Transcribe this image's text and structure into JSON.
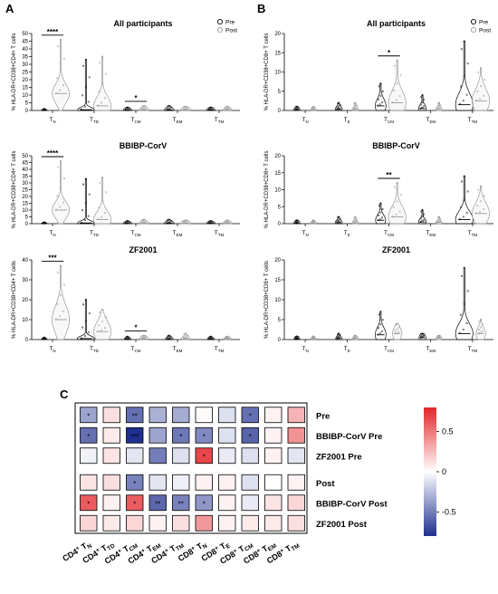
{
  "chart_data": [
    {
      "type": "violin",
      "panel": "A",
      "title": "All participants",
      "ylabel": "% HLA-DR+CD38+CD4+ T cells",
      "ylim": [
        0,
        50
      ],
      "yticks": [
        "0",
        "5",
        "10",
        "15",
        "20",
        "25",
        "30",
        "35",
        "40",
        "45",
        "50"
      ],
      "categories": [
        {
          "main": "T",
          "sub": "N"
        },
        {
          "main": "T",
          "sub": "TD"
        },
        {
          "main": "T",
          "sub": "CM"
        },
        {
          "main": "T",
          "sub": "EM"
        },
        {
          "main": "T",
          "sub": "TM"
        }
      ],
      "series": [
        {
          "name": "Pre",
          "max": [
            1,
            33,
            2,
            3,
            2
          ],
          "median": [
            0.2,
            0.5,
            0.2,
            0.3,
            0.3
          ],
          "spread": [
            0.5,
            1.5,
            1.2,
            1.5,
            1.2
          ]
        },
        {
          "name": "Post",
          "max": [
            46,
            35,
            3,
            2.5,
            2.5
          ],
          "median": [
            11,
            3,
            0.5,
            0.5,
            0.5
          ],
          "spread": [
            6,
            6,
            1.5,
            1.5,
            1.3
          ]
        }
      ],
      "significance": [
        {
          "category_index": 0,
          "label": "****"
        },
        {
          "category_index": 2,
          "label": "*"
        }
      ],
      "legend": [
        "Pre",
        "Post"
      ]
    },
    {
      "type": "violin",
      "panel": "B",
      "title": "All participants",
      "ylabel": "% HLA-DR+CD38+CD8+ T cells",
      "ylim": [
        0,
        20
      ],
      "yticks": [
        "0",
        "5",
        "10",
        "15",
        "20"
      ],
      "categories": [
        {
          "main": "T",
          "sub": "N"
        },
        {
          "main": "T",
          "sub": "E"
        },
        {
          "main": "T",
          "sub": "CM"
        },
        {
          "main": "T",
          "sub": "EM"
        },
        {
          "main": "T",
          "sub": "TM"
        }
      ],
      "series": [
        {
          "name": "Pre",
          "max": [
            1,
            2,
            7,
            4,
            18
          ],
          "median": [
            0.2,
            0.3,
            1.2,
            0.5,
            1.5
          ],
          "spread": [
            0.6,
            0.8,
            1.8,
            1.0,
            3.0
          ]
        },
        {
          "name": "Post",
          "max": [
            1,
            2,
            13,
            2,
            11
          ],
          "median": [
            0.2,
            0.3,
            2,
            0.4,
            2.5
          ],
          "spread": [
            0.5,
            0.6,
            3.0,
            0.6,
            3.0
          ]
        }
      ],
      "significance": [
        {
          "category_index": 2,
          "label": "*"
        }
      ],
      "legend": [
        "Pre",
        "Post"
      ]
    },
    {
      "type": "violin",
      "panel": "A2",
      "title": "BBIBP-CorV",
      "ylabel": "% HLA-DR+CD38+CD4+ T cells",
      "ylim": [
        0,
        50
      ],
      "yticks": [
        "0",
        "5",
        "10",
        "15",
        "20",
        "25",
        "30",
        "35",
        "40",
        "45",
        "50"
      ],
      "categories": [
        {
          "main": "T",
          "sub": "N"
        },
        {
          "main": "T",
          "sub": "TD"
        },
        {
          "main": "T",
          "sub": "CM"
        },
        {
          "main": "T",
          "sub": "EM"
        },
        {
          "main": "T",
          "sub": "TM"
        }
      ],
      "series": [
        {
          "name": "Pre",
          "max": [
            1,
            33,
            2,
            3,
            2
          ],
          "median": [
            0.2,
            0.5,
            0.2,
            0.3,
            0.3
          ],
          "spread": [
            0.5,
            1.5,
            1.2,
            1.5,
            1.2
          ]
        },
        {
          "name": "Post",
          "max": [
            46,
            34,
            3,
            2.5,
            2.5
          ],
          "median": [
            10,
            3,
            0.5,
            0.5,
            0.5
          ],
          "spread": [
            6,
            6,
            1.5,
            1.5,
            1.3
          ]
        }
      ],
      "significance": [
        {
          "category_index": 0,
          "label": "****"
        }
      ]
    },
    {
      "type": "violin",
      "panel": "B2",
      "title": "BBIBP-CorV",
      "ylabel": "% HLA-DR+CD38+CD8+ T cells",
      "ylim": [
        0,
        20
      ],
      "yticks": [
        "0",
        "5",
        "10",
        "15",
        "20"
      ],
      "categories": [
        {
          "main": "T",
          "sub": "N"
        },
        {
          "main": "T",
          "sub": "E"
        },
        {
          "main": "T",
          "sub": "CM"
        },
        {
          "main": "T",
          "sub": "EM"
        },
        {
          "main": "T",
          "sub": "TM"
        }
      ],
      "series": [
        {
          "name": "Pre",
          "max": [
            1,
            2,
            6,
            4,
            14
          ],
          "median": [
            0.2,
            0.3,
            1,
            0.5,
            1.2
          ],
          "spread": [
            0.6,
            0.8,
            1.6,
            1.0,
            2.5
          ]
        },
        {
          "name": "Post",
          "max": [
            1,
            2,
            12,
            2,
            11
          ],
          "median": [
            0.2,
            0.3,
            2,
            0.4,
            3
          ],
          "spread": [
            0.5,
            0.6,
            3.0,
            0.6,
            3.0
          ]
        }
      ],
      "significance": [
        {
          "category_index": 2,
          "label": "**"
        }
      ]
    },
    {
      "type": "violin",
      "panel": "A3",
      "title": "ZF2001",
      "ylabel": "% HLA-DR+CD38+CD4+ T cells",
      "ylim": [
        0,
        40
      ],
      "yticks": [
        "0",
        "10",
        "20",
        "30",
        "40"
      ],
      "categories": [
        {
          "main": "T",
          "sub": "N"
        },
        {
          "main": "T",
          "sub": "TD"
        },
        {
          "main": "T",
          "sub": "CM"
        },
        {
          "main": "T",
          "sub": "EM"
        },
        {
          "main": "T",
          "sub": "TM"
        }
      ],
      "series": [
        {
          "name": "Pre",
          "max": [
            1,
            20,
            1.5,
            2,
            1.5
          ],
          "median": [
            0.2,
            0.5,
            0.2,
            0.3,
            0.3
          ],
          "spread": [
            0.5,
            1.2,
            0.8,
            1.0,
            0.8
          ]
        },
        {
          "name": "Post",
          "max": [
            37,
            15,
            2,
            3,
            1.5
          ],
          "median": [
            10,
            4,
            0.5,
            0.5,
            0.5
          ],
          "spread": [
            7,
            5,
            1.2,
            1.2,
            0.8
          ]
        }
      ],
      "significance": [
        {
          "category_index": 0,
          "label": "***"
        },
        {
          "category_index": 2,
          "label": "*"
        }
      ]
    },
    {
      "type": "violin",
      "panel": "B3",
      "title": "ZF2001",
      "ylabel": "% HLA-DR+CD38+CD8+ T cells",
      "ylim": [
        0,
        20
      ],
      "yticks": [
        "0",
        "5",
        "10",
        "15",
        "20"
      ],
      "categories": [
        {
          "main": "T",
          "sub": "N"
        },
        {
          "main": "T",
          "sub": "E"
        },
        {
          "main": "T",
          "sub": "CM"
        },
        {
          "main": "T",
          "sub": "EM"
        },
        {
          "main": "T",
          "sub": "TM"
        }
      ],
      "series": [
        {
          "name": "Pre",
          "max": [
            0.8,
            1.5,
            7,
            1.5,
            18
          ],
          "median": [
            0.2,
            0.3,
            1.2,
            0.5,
            1.5
          ],
          "spread": [
            0.5,
            0.6,
            1.8,
            0.8,
            2.5
          ]
        },
        {
          "name": "Post",
          "max": [
            0.8,
            1,
            4,
            1,
            5
          ],
          "median": [
            0.2,
            0.3,
            1.5,
            0.4,
            1.5
          ],
          "spread": [
            0.4,
            0.5,
            1.5,
            0.5,
            1.5
          ]
        }
      ],
      "significance": []
    },
    {
      "type": "heatmap",
      "panel": "C",
      "rows": [
        "Pre",
        "BBIBP-CorV Pre",
        "ZF2001 Pre",
        "Post",
        "BBIBP-CorV Post",
        "ZF2001 Post"
      ],
      "columns": [
        {
          "pre": "CD4",
          "sup": "+",
          "main": " T",
          "sub": "N"
        },
        {
          "pre": "CD4",
          "sup": "+",
          "main": " T",
          "sub": "TD"
        },
        {
          "pre": "CD4",
          "sup": "+",
          "main": " T",
          "sub": "CM"
        },
        {
          "pre": "CD4",
          "sup": "+",
          "main": " T",
          "sub": "EM"
        },
        {
          "pre": "CD4",
          "sup": "+",
          "main": " T",
          "sub": "TM"
        },
        {
          "pre": "CD8",
          "sup": "+",
          "main": " T",
          "sub": "N"
        },
        {
          "pre": "CD8",
          "sup": "+",
          "main": " T",
          "sub": "E"
        },
        {
          "pre": "CD8",
          "sup": "+",
          "main": " T",
          "sub": "CM"
        },
        {
          "pre": "CD8",
          "sup": "+",
          "main": " T",
          "sub": "EM"
        },
        {
          "pre": "CD8",
          "sup": "+",
          "main": " T",
          "sub": "TM"
        }
      ],
      "values": [
        [
          -0.35,
          0.12,
          -0.55,
          -0.3,
          -0.32,
          0.02,
          -0.12,
          -0.55,
          0.05,
          0.28
        ],
        [
          -0.55,
          0.08,
          -0.8,
          -0.35,
          -0.52,
          -0.45,
          -0.12,
          -0.6,
          0.05,
          0.4
        ],
        [
          -0.05,
          0.1,
          -0.1,
          -0.5,
          -0.12,
          0.68,
          -0.08,
          -0.12,
          0.05,
          -0.1
        ],
        [
          0.1,
          0.12,
          -0.48,
          -0.1,
          -0.06,
          0.05,
          0.05,
          -0.12,
          0.0,
          0.05
        ],
        [
          0.6,
          0.05,
          0.6,
          -0.58,
          -0.48,
          -0.4,
          0.05,
          -0.08,
          0.1,
          0.15
        ],
        [
          0.15,
          0.08,
          0.15,
          0.05,
          0.12,
          0.38,
          0.05,
          0.08,
          0.08,
          0.12
        ]
      ],
      "stars": [
        {
          "row": 0,
          "col": 0,
          "label": "*"
        },
        {
          "row": 0,
          "col": 2,
          "label": "**"
        },
        {
          "row": 0,
          "col": 7,
          "label": "*"
        },
        {
          "row": 1,
          "col": 0,
          "label": "*"
        },
        {
          "row": 1,
          "col": 2,
          "label": "***"
        },
        {
          "row": 1,
          "col": 4,
          "label": "*"
        },
        {
          "row": 1,
          "col": 5,
          "label": "*"
        },
        {
          "row": 1,
          "col": 7,
          "label": "*"
        },
        {
          "row": 2,
          "col": 5,
          "label": "*"
        },
        {
          "row": 3,
          "col": 2,
          "label": "*"
        },
        {
          "row": 4,
          "col": 0,
          "label": "*"
        },
        {
          "row": 4,
          "col": 2,
          "label": "*"
        },
        {
          "row": 4,
          "col": 3,
          "label": "**"
        },
        {
          "row": 4,
          "col": 4,
          "label": "**"
        },
        {
          "row": 4,
          "col": 5,
          "label": "*"
        }
      ],
      "colorbar": {
        "range": [
          -0.8,
          0.8
        ],
        "ticks": [
          "0.5",
          "0",
          "-0.5"
        ],
        "colors": {
          "low": "#1f2f8f",
          "mid": "#ffffff",
          "high": "#e3262b"
        }
      }
    }
  ],
  "panel_labels": {
    "a": "A",
    "b": "B",
    "c": "C"
  },
  "legend_labels": {
    "pre": "Pre",
    "post": "Post"
  },
  "colors": {
    "pre": "#000000",
    "post": "#9a9a9a"
  }
}
